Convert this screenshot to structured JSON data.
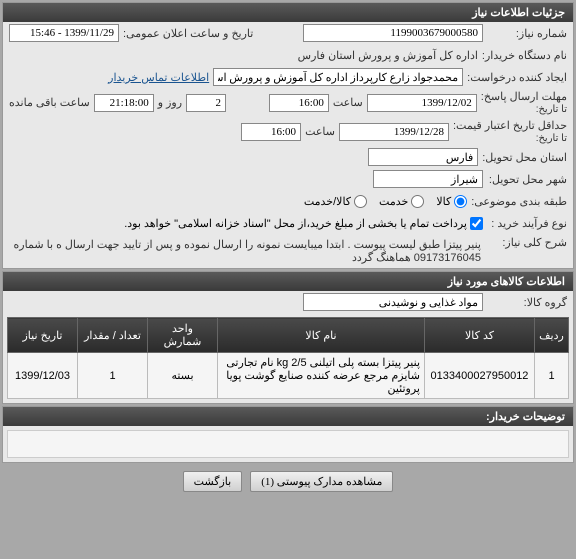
{
  "header": {
    "title": "جزئیات اطلاعات نیاز"
  },
  "fields": {
    "need_no_label": "شماره نیاز:",
    "need_no": "1199003679000580",
    "announce_label": "تاریخ و ساعت اعلان عمومی:",
    "announce_value": "1399/11/29 - 15:46",
    "buyer_label": "نام دستگاه خریدار:",
    "buyer_value": "اداره کل آموزش و پرورش استان فارس",
    "creator_label": "ایجاد کننده درخواست:",
    "creator_value": "محمدجواد زارع کارپرداز اداره کل آموزش و پرورش استان فارس",
    "contact_link": "اطلاعات تماس خریدار",
    "deadline_reply_label": "مهلت ارسال پاسخ:",
    "deadline_reply_note": "تا تاریخ:",
    "deadline_date": "1399/12/02",
    "time_label": "ساعت",
    "deadline_time": "16:00",
    "day_label": "روز و",
    "day_count": "2",
    "time2": "21:18:00",
    "remaining_label": "ساعت باقی مانده",
    "min_credit_label": "حداقل تاریخ اعتبار قیمت:",
    "min_credit_note": "تا تاریخ:",
    "min_credit_date": "1399/12/28",
    "min_credit_time": "16:00",
    "delivery_prov_label": "استان محل تحویل:",
    "delivery_prov": "فارس",
    "delivery_city_label": "شهر محل تحویل:",
    "delivery_city": "شیراز",
    "budget_label": "طبقه بندی موضوعی:",
    "opt_goods": "کالا",
    "opt_service": "خدمت",
    "opt_goods_service": "کالا/خدمت",
    "buy_process_label": "نوع فرآیند خرید :",
    "checkbox_text": "پرداخت تمام یا بخشی از مبلغ خرید،از محل \"اسناد خزانه اسلامی\" خواهد بود.",
    "general_title_label": "شرح کلی نیاز:",
    "general_title_text": "پنیر پیتزا طبق لیست پیوست . ابتدا میبایست نمونه را ارسال نموده و پس از تایید جهت ارسال ه با شماره 09173176045 هماهنگ گردد"
  },
  "goods_panel": {
    "title": "اطلاعات کالاهای مورد نیاز",
    "group_label": "گروه کالا:",
    "group_value": "مواد غذایی و نوشیدنی",
    "columns": {
      "row": "ردیف",
      "code": "کد کالا",
      "name": "نام کالا",
      "unit": "واحد شمارش",
      "qty": "تعداد / مقدار",
      "date": "تاریخ نیاز"
    },
    "rows": [
      {
        "row": "1",
        "code": "0133400027950012",
        "name": "پنیر پیتزا بسته پلی اتیلنی kg 2/5 نام تجارتی شایزم مرجع عرضه کننده صنایع گوشت پویا پروتئین",
        "unit": "بسته",
        "qty": "1",
        "date": "1399/12/03"
      }
    ]
  },
  "buyer_notes": {
    "title": "توضیحات خریدار:"
  },
  "footer": {
    "view_attach": "مشاهده مدارک پیوستی (1)",
    "back": "بازگشت"
  },
  "colors": {
    "header_bg": "#3a3a3a",
    "panel_bg": "#e8e8e8",
    "link": "#1a5490"
  }
}
